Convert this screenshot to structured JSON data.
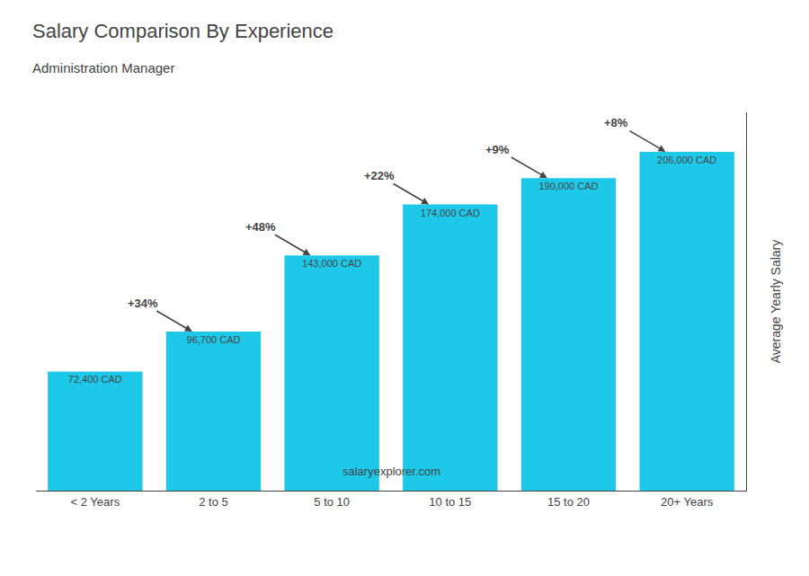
{
  "chart_data": {
    "type": "bar",
    "title": "Salary Comparison By Experience",
    "subtitle": "Administration Manager",
    "categories": [
      "< 2 Years",
      "2 to 5",
      "5 to 10",
      "10 to 15",
      "15 to 20",
      "20+ Years"
    ],
    "values": [
      72400,
      96700,
      143000,
      174000,
      190000,
      206000
    ],
    "value_labels": [
      "72,400 CAD",
      "96,700 CAD",
      "143,000 CAD",
      "174,000 CAD",
      "190,000 CAD",
      "206,000 CAD"
    ],
    "data_labels": true,
    "annotations": [
      "+34%",
      "+48%",
      "+22%",
      "+9%",
      "+8%"
    ],
    "ylabel": "Average Yearly Salary",
    "footer": "salaryexplorer.com",
    "ylim": [
      0,
      230000
    ],
    "tick_labels": "x",
    "grid": false,
    "color": "#1ec8e8"
  }
}
